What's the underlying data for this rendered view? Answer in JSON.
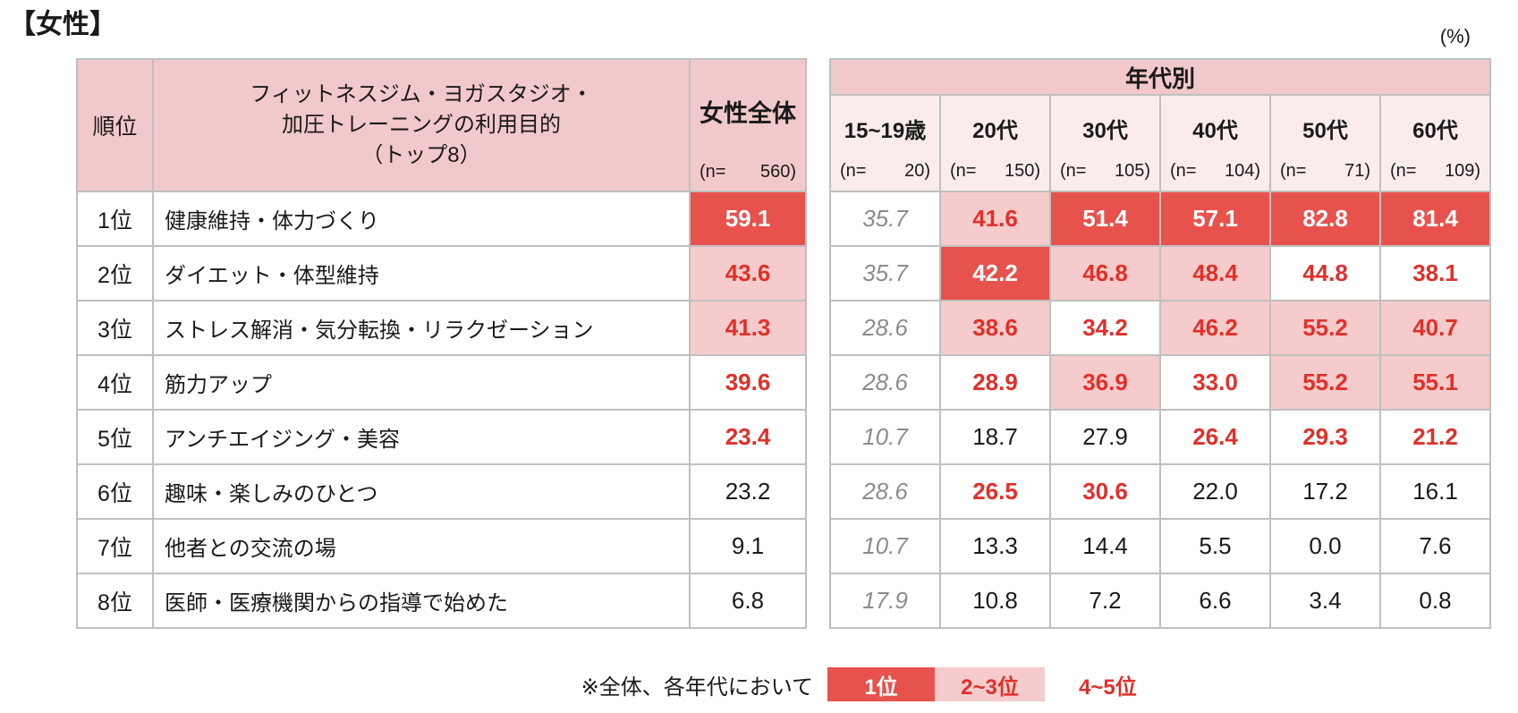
{
  "chart_data": {
    "type": "table",
    "title": "【女性】",
    "unit_label": "(%)",
    "row_header": {
      "rank": "順位",
      "purpose_lines": [
        "フィットネスジム・ヨガスタジオ・",
        "加圧トレーニングの利用目的",
        "（トップ8）"
      ]
    },
    "total_column": {
      "label": "女性全体",
      "n_prefix": "(n=",
      "n_value": "560)"
    },
    "age_group_header": "年代別",
    "age_columns": [
      {
        "label": "15~19歳",
        "n_prefix": "(n=",
        "n_value": "20)"
      },
      {
        "label": "20代",
        "n_prefix": "(n=",
        "n_value": "150)"
      },
      {
        "label": "30代",
        "n_prefix": "(n=",
        "n_value": "105)"
      },
      {
        "label": "40代",
        "n_prefix": "(n=",
        "n_value": "104)"
      },
      {
        "label": "50代",
        "n_prefix": "(n=",
        "n_value": "71)"
      },
      {
        "label": "60代",
        "n_prefix": "(n=",
        "n_value": "109)"
      }
    ],
    "rows": [
      {
        "rank": "1位",
        "purpose": "健康維持・体力づくり",
        "total": {
          "value": "59.1",
          "style": "rank1"
        },
        "cells": [
          {
            "value": "35.7",
            "style": "muted"
          },
          {
            "value": "41.6",
            "style": "rank23"
          },
          {
            "value": "51.4",
            "style": "rank1"
          },
          {
            "value": "57.1",
            "style": "rank1"
          },
          {
            "value": "82.8",
            "style": "rank1"
          },
          {
            "value": "81.4",
            "style": "rank1"
          }
        ]
      },
      {
        "rank": "2位",
        "purpose": "ダイエット・体型維持",
        "total": {
          "value": "43.6",
          "style": "rank23"
        },
        "cells": [
          {
            "value": "35.7",
            "style": "muted"
          },
          {
            "value": "42.2",
            "style": "rank1"
          },
          {
            "value": "46.8",
            "style": "rank23"
          },
          {
            "value": "48.4",
            "style": "rank23"
          },
          {
            "value": "44.8",
            "style": "rank45"
          },
          {
            "value": "38.1",
            "style": "rank45"
          }
        ]
      },
      {
        "rank": "3位",
        "purpose": "ストレス解消・気分転換・リラクゼーション",
        "total": {
          "value": "41.3",
          "style": "rank23"
        },
        "cells": [
          {
            "value": "28.6",
            "style": "muted"
          },
          {
            "value": "38.6",
            "style": "rank23"
          },
          {
            "value": "34.2",
            "style": "rank45"
          },
          {
            "value": "46.2",
            "style": "rank23"
          },
          {
            "value": "55.2",
            "style": "rank23"
          },
          {
            "value": "40.7",
            "style": "rank23"
          }
        ]
      },
      {
        "rank": "4位",
        "purpose": "筋力アップ",
        "total": {
          "value": "39.6",
          "style": "rank45"
        },
        "cells": [
          {
            "value": "28.6",
            "style": "muted"
          },
          {
            "value": "28.9",
            "style": "rank45"
          },
          {
            "value": "36.9",
            "style": "rank23"
          },
          {
            "value": "33.0",
            "style": "rank45"
          },
          {
            "value": "55.2",
            "style": "rank23"
          },
          {
            "value": "55.1",
            "style": "rank23"
          }
        ]
      },
      {
        "rank": "5位",
        "purpose": "アンチエイジング・美容",
        "total": {
          "value": "23.4",
          "style": "rank45"
        },
        "cells": [
          {
            "value": "10.7",
            "style": "muted"
          },
          {
            "value": "18.7",
            "style": "plain"
          },
          {
            "value": "27.9",
            "style": "plain"
          },
          {
            "value": "26.4",
            "style": "rank45"
          },
          {
            "value": "29.3",
            "style": "rank45"
          },
          {
            "value": "21.2",
            "style": "rank45"
          }
        ]
      },
      {
        "rank": "6位",
        "purpose": "趣味・楽しみのひとつ",
        "total": {
          "value": "23.2",
          "style": "plain"
        },
        "cells": [
          {
            "value": "28.6",
            "style": "muted"
          },
          {
            "value": "26.5",
            "style": "rank45"
          },
          {
            "value": "30.6",
            "style": "rank45"
          },
          {
            "value": "22.0",
            "style": "plain"
          },
          {
            "value": "17.2",
            "style": "plain"
          },
          {
            "value": "16.1",
            "style": "plain"
          }
        ]
      },
      {
        "rank": "7位",
        "purpose": "他者との交流の場",
        "total": {
          "value": "9.1",
          "style": "plain"
        },
        "cells": [
          {
            "value": "10.7",
            "style": "muted"
          },
          {
            "value": "13.3",
            "style": "plain"
          },
          {
            "value": "14.4",
            "style": "plain"
          },
          {
            "value": "5.5",
            "style": "plain"
          },
          {
            "value": "0.0",
            "style": "plain"
          },
          {
            "value": "7.6",
            "style": "plain"
          }
        ]
      },
      {
        "rank": "8位",
        "purpose": "医師・医療機関からの指導で始めた",
        "total": {
          "value": "6.8",
          "style": "plain"
        },
        "cells": [
          {
            "value": "17.9",
            "style": "muted"
          },
          {
            "value": "10.8",
            "style": "plain"
          },
          {
            "value": "7.2",
            "style": "plain"
          },
          {
            "value": "6.6",
            "style": "plain"
          },
          {
            "value": "3.4",
            "style": "plain"
          },
          {
            "value": "0.8",
            "style": "plain"
          }
        ]
      }
    ],
    "legend": {
      "note": "※全体、各年代において",
      "items": [
        {
          "label": "1位",
          "style": "rank1"
        },
        {
          "label": "2~3位",
          "style": "rank23"
        },
        {
          "label": "4~5位",
          "style": "rank45"
        }
      ]
    },
    "colors": {
      "rank1_bg": "#E8524D",
      "rank1_text": "#FFFFFF",
      "rank23_bg": "#F6CBCB",
      "accent_text": "#E0302A",
      "header_bg": "#F2C9CA",
      "subheader_bg": "#FBECEC",
      "muted_text": "#8C8C8C",
      "grid_line": "#BFBFBF",
      "text": "#1A1A1A"
    }
  }
}
